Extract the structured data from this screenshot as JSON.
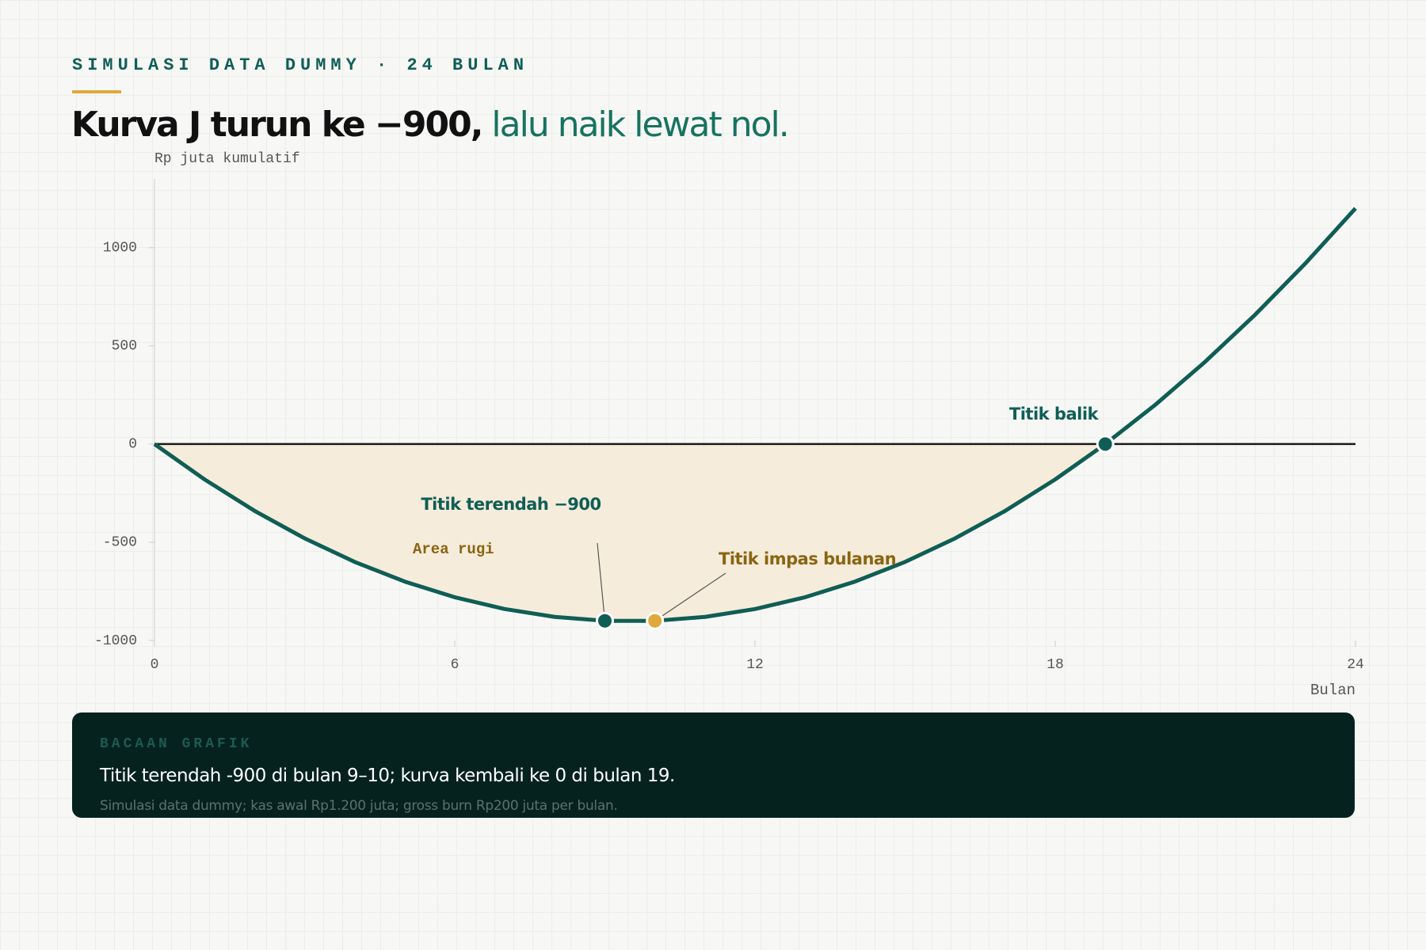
{
  "eyebrow": "SIMULASI DATA DUMMY · 24 BULAN",
  "headline": {
    "strong": "Kurva J turun ke −900,",
    "soft": "lalu naik lewat nol."
  },
  "chart_data": {
    "type": "line",
    "ylabel": "Rp juta kumulatif",
    "xlabel": "Bulan",
    "x": [
      0,
      1,
      2,
      3,
      4,
      5,
      6,
      7,
      8,
      9,
      10,
      11,
      12,
      13,
      14,
      15,
      16,
      17,
      18,
      19,
      20,
      21,
      22,
      23,
      24
    ],
    "values": [
      0,
      -180,
      -340,
      -480,
      -600,
      -700,
      -780,
      -840,
      -880,
      -900,
      -900,
      -880,
      -840,
      -780,
      -700,
      -600,
      -480,
      -340,
      -180,
      0,
      200,
      420,
      660,
      920,
      1200
    ],
    "color": "#0f5e55",
    "fill_color": "#f6ead6",
    "xlim": [
      0,
      24
    ],
    "xticks": [
      0,
      6,
      12,
      18,
      24
    ],
    "ylim": [
      -1000,
      1350
    ],
    "yticks": [
      -1000,
      -500,
      0,
      500,
      1000
    ],
    "area_label": "Area rugi",
    "annotations": [
      {
        "label": "Titik balik",
        "x": 19,
        "y": 0,
        "color": "#0f5e55"
      },
      {
        "label": "Titik terendah −900",
        "x": 9,
        "y": -900,
        "color": "#0f5e55"
      },
      {
        "label": "Titik impas bulanan",
        "x": 10,
        "y": -900,
        "color": "#e0a93b"
      }
    ]
  },
  "panel": {
    "kicker": "BACAAN GRAFIK",
    "text": "Titik terendah -900 di bulan 9–10; kurva kembali ke 0 di bulan 19.",
    "note": "Simulasi data dummy; kas awal Rp1.200 juta; gross burn Rp200 juta per bulan."
  }
}
